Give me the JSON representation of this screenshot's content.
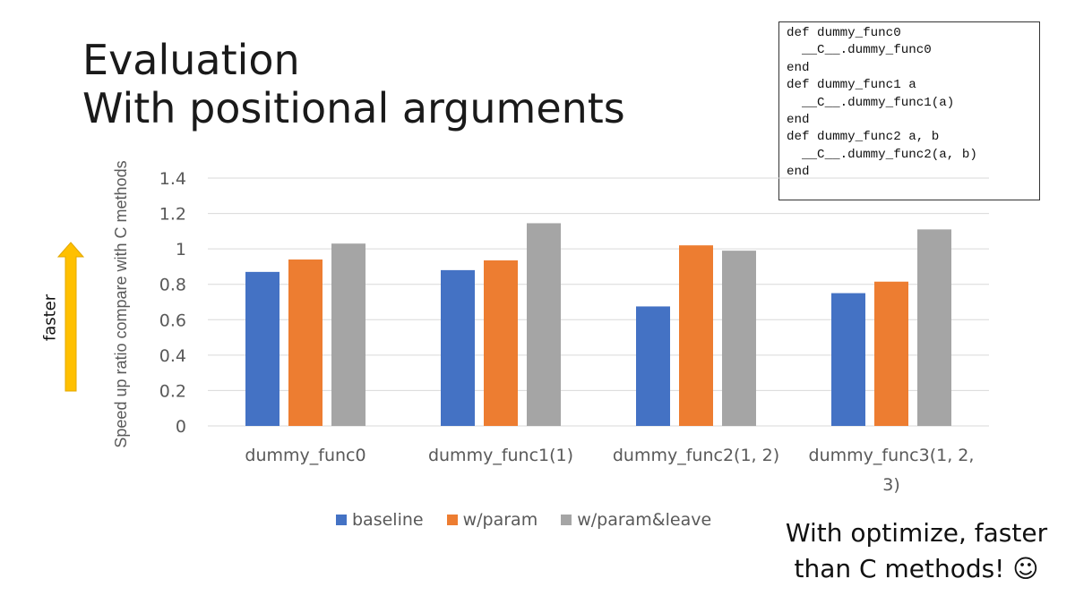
{
  "slide": {
    "title_lines": [
      "Evaluation",
      "With positional arguments"
    ],
    "side_label": "faster",
    "note": "With optimize, faster than C methods! ☺"
  },
  "code": {
    "lines": [
      "def dummy_func0",
      "  __C__.dummy_func0",
      "end",
      "def dummy_func1 a",
      "  __C__.dummy_func1(a)",
      "end",
      "def dummy_func2 a, b",
      "  __C__.dummy_func2(a, b)",
      "end"
    ]
  },
  "chart_data": {
    "type": "bar",
    "title": "",
    "xlabel": "",
    "ylabel": "Speed up ratio compare with C methods",
    "ylim": [
      0,
      1.4
    ],
    "yticks": [
      "0",
      "0.2",
      "0.4",
      "0.6",
      "0.8",
      "1",
      "1.2",
      "1.4"
    ],
    "grid": true,
    "legend_position": "bottom",
    "categories": [
      "dummy_func0",
      "dummy_func1(1)",
      "dummy_func2(1, 2)",
      "dummy_func3(1, 2, 3)"
    ],
    "series": [
      {
        "name": "baseline",
        "color": "#4472C4",
        "values": [
          0.87,
          0.88,
          0.675,
          0.75
        ]
      },
      {
        "name": "w/param",
        "color": "#ED7D31",
        "values": [
          0.94,
          0.935,
          1.02,
          0.815
        ]
      },
      {
        "name": "w/param&leave",
        "color": "#A5A5A5",
        "values": [
          1.03,
          1.145,
          0.99,
          1.11
        ]
      }
    ]
  },
  "colors": {
    "arrow": "#FFC000",
    "grid": "#D9D9D9",
    "axis_text": "#595959"
  }
}
